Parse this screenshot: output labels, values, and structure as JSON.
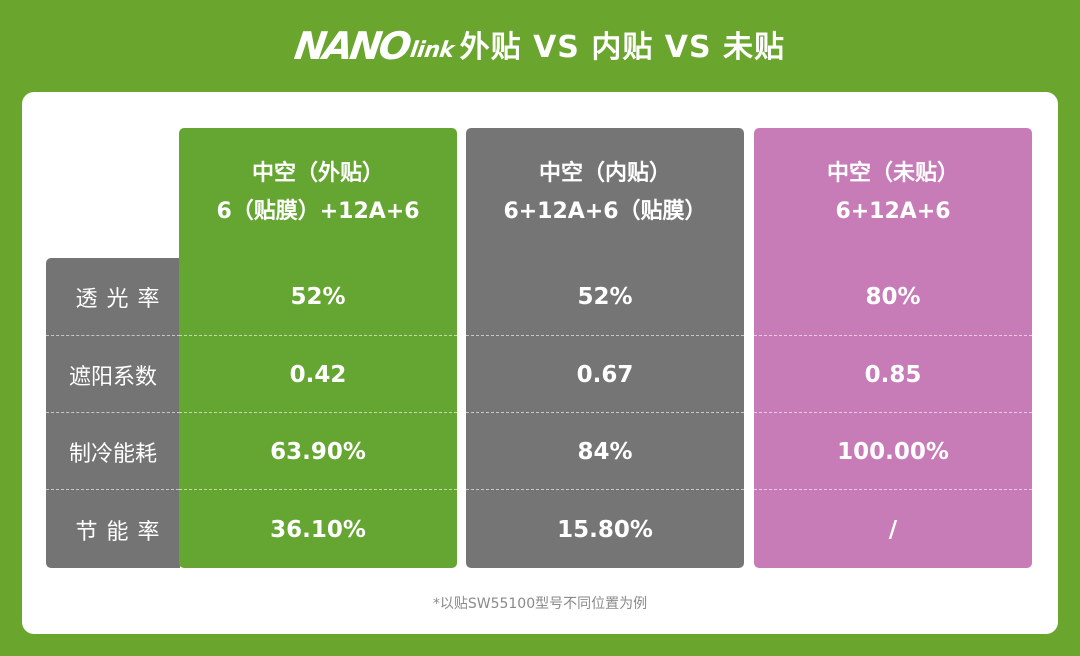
{
  "header": {
    "brand_main": "NANO",
    "brand_sub": "link",
    "title": "外贴 VS 内贴 VS 未贴"
  },
  "colors": {
    "background": "#6aa62e",
    "green": "#65a531",
    "gray": "#757575",
    "pink": "#c77bb7",
    "card": "#ffffff"
  },
  "row_labels": [
    "透光率",
    "遮阳系数",
    "制冷能耗",
    "节能率"
  ],
  "columns": [
    {
      "title": "中空（外贴）",
      "subtitle": "6（贴膜）+12A+6",
      "values": [
        "52%",
        "0.42",
        "63.90%",
        "36.10%"
      ]
    },
    {
      "title": "中空（内贴）",
      "subtitle": "6+12A+6（贴膜）",
      "values": [
        "52%",
        "0.67",
        "84%",
        "15.80%"
      ]
    },
    {
      "title": "中空（未贴）",
      "subtitle": "6+12A+6",
      "values": [
        "80%",
        "0.85",
        "100.00%",
        "/"
      ]
    }
  ],
  "footnote": "*以贴SW55100型号不同位置为例"
}
